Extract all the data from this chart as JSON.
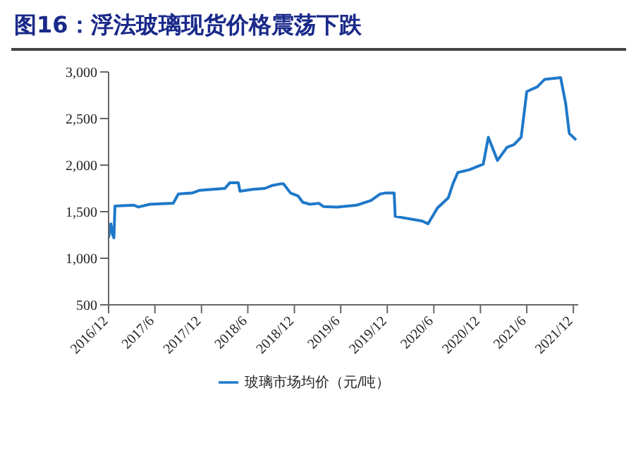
{
  "chart_data": {
    "type": "line",
    "title": "图16：浮法玻璃现货价格震荡下跌",
    "x": [
      "2016-12-01",
      "2016-12-10",
      "2016-12-17",
      "2016-12-22",
      "2016-12-26",
      "2017-03-10",
      "2017-03-28",
      "2017-05-12",
      "2017-08-12",
      "2017-09-01",
      "2017-10-25",
      "2017-11-24",
      "2018-03-03",
      "2018-03-22",
      "2018-04-25",
      "2018-05-01",
      "2018-06-22",
      "2018-08-07",
      "2018-09-03",
      "2018-10-10",
      "2018-10-19",
      "2018-11-16",
      "2018-12-15",
      "2019-01-03",
      "2019-02-01",
      "2019-03-07",
      "2019-03-25",
      "2019-05-18",
      "2019-08-03",
      "2019-09-28",
      "2019-11-03",
      "2019-11-22",
      "2019-12-28",
      "2020-01-01",
      "2020-04-16",
      "2020-05-09",
      "2020-06-15",
      "2020-07-28",
      "2020-08-15",
      "2020-09-03",
      "2020-10-18",
      "2020-12-12",
      "2021-01-01",
      "2021-02-06",
      "2021-03-15",
      "2021-04-12",
      "2021-05-10",
      "2021-06-01",
      "2021-07-12",
      "2021-08-10",
      "2021-10-12",
      "2021-11-01",
      "2021-11-15",
      "2021-12-12"
    ],
    "series": [
      {
        "name": "玻璃市场均价（元/吨）",
        "color": "#1f78c8",
        "values": [
          1220,
          1370,
          1250,
          1220,
          1560,
          1570,
          1550,
          1580,
          1590,
          1690,
          1700,
          1730,
          1750,
          1810,
          1810,
          1720,
          1740,
          1750,
          1780,
          1800,
          1800,
          1700,
          1670,
          1600,
          1580,
          1590,
          1555,
          1550,
          1570,
          1620,
          1690,
          1700,
          1700,
          1450,
          1400,
          1370,
          1540,
          1650,
          1800,
          1920,
          1950,
          2010,
          2300,
          2050,
          2190,
          2220,
          2300,
          2790,
          2840,
          2920,
          2940,
          2660,
          2340,
          2270
        ]
      }
    ],
    "xlim": [
      "2016-12-01",
      "2021-12-20"
    ],
    "xticks": [
      {
        "value": "2016-12",
        "label": "2016/12"
      },
      {
        "value": "2017-06",
        "label": "2017/6"
      },
      {
        "value": "2017-12",
        "label": "2017/12"
      },
      {
        "value": "2018-06",
        "label": "2018/6"
      },
      {
        "value": "2018-12",
        "label": "2018/12"
      },
      {
        "value": "2019-06",
        "label": "2019/6"
      },
      {
        "value": "2019-12",
        "label": "2019/12"
      },
      {
        "value": "2020-06",
        "label": "2020/6"
      },
      {
        "value": "2020-12",
        "label": "2020/12"
      },
      {
        "value": "2021-06",
        "label": "2021/6"
      },
      {
        "value": "2021-12",
        "label": "2021/12"
      }
    ],
    "ylim": [
      500,
      3000
    ],
    "yticks": [
      {
        "value": 500,
        "label": "500"
      },
      {
        "value": 1000,
        "label": "1,000"
      },
      {
        "value": 1500,
        "label": "1,500"
      },
      {
        "value": 2000,
        "label": "2,000"
      },
      {
        "value": 2500,
        "label": "2,500"
      },
      {
        "value": 3000,
        "label": "3,000"
      }
    ],
    "legend": "bottom"
  }
}
